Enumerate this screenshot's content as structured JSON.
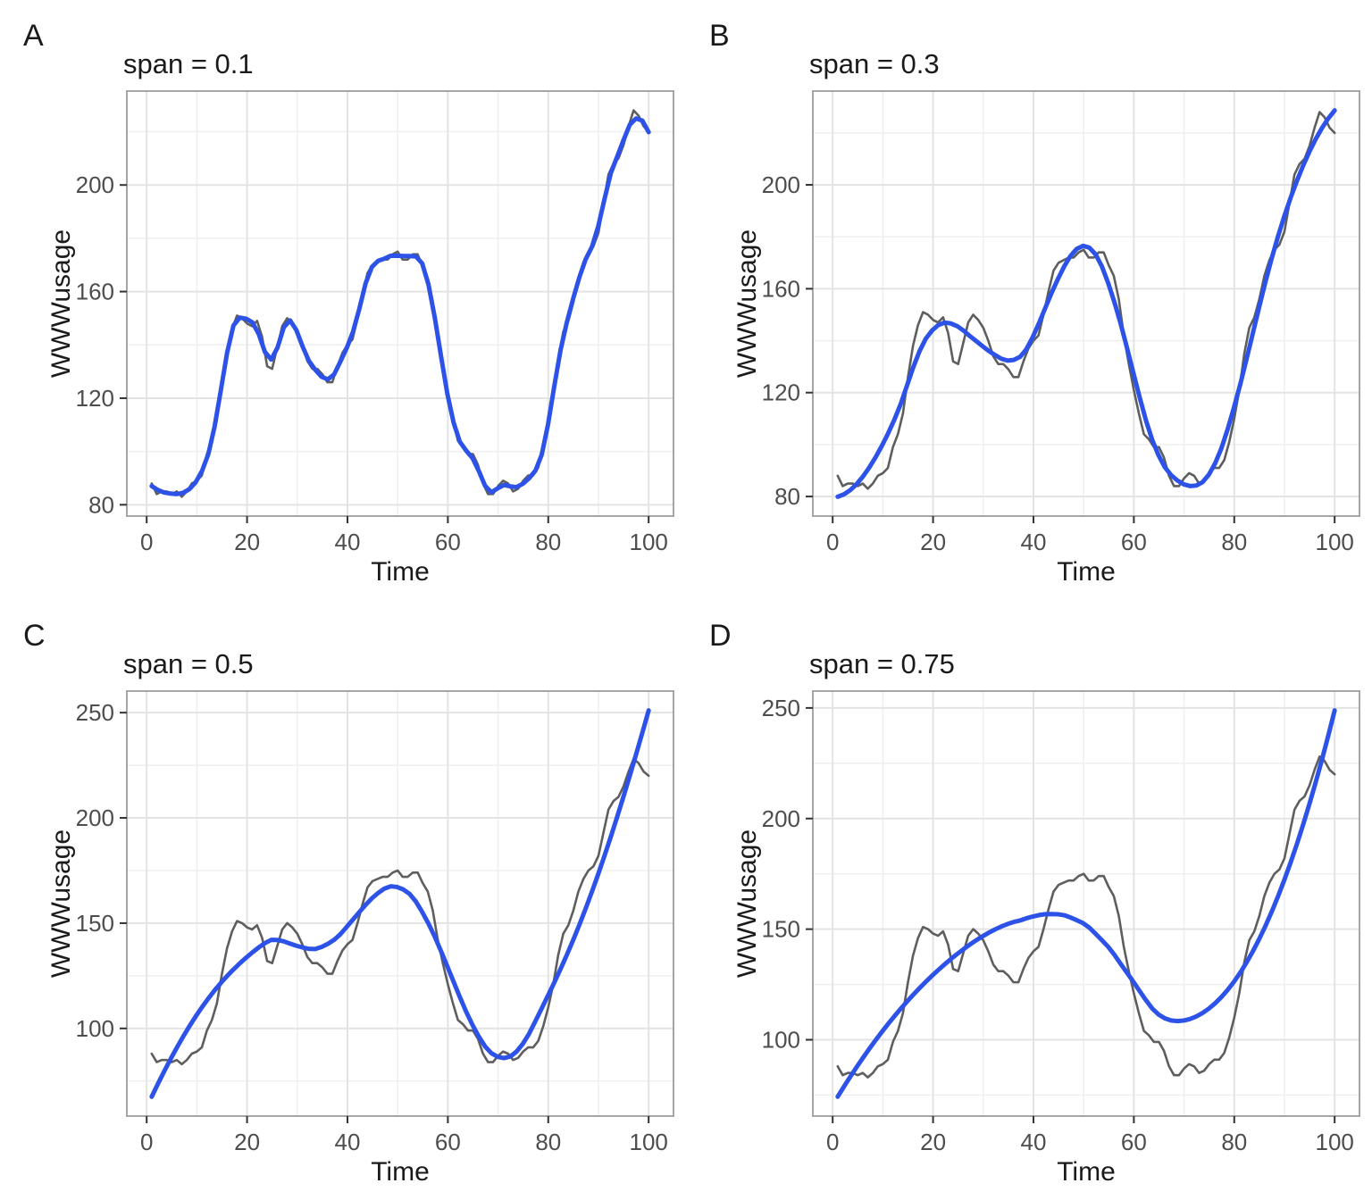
{
  "figure": {
    "background_color": "#FFFFFF"
  },
  "chart_data": {
    "type": "line",
    "description": "2x2 grid of WWWusage time series with loess smoothers of varying span",
    "x": {
      "label": "Time",
      "start": 1,
      "step": 1,
      "count": 100,
      "ticks": [
        0,
        20,
        40,
        60,
        80,
        100
      ]
    },
    "y_label": "WWWusage",
    "series_values": [
      88,
      84,
      85,
      85,
      84,
      85,
      83,
      85,
      88,
      89,
      91,
      99,
      104,
      112,
      126,
      138,
      146,
      151,
      150,
      148,
      147,
      149,
      143,
      132,
      131,
      139,
      147,
      150,
      148,
      145,
      140,
      134,
      131,
      131,
      129,
      126,
      126,
      132,
      137,
      140,
      142,
      150,
      159,
      167,
      170,
      171,
      172,
      172,
      174,
      175,
      172,
      172,
      174,
      174,
      169,
      165,
      156,
      142,
      131,
      121,
      112,
      104,
      102,
      99,
      99,
      95,
      88,
      84,
      84,
      87,
      89,
      88,
      85,
      86,
      89,
      91,
      91,
      94,
      101,
      110,
      121,
      135,
      145,
      149,
      156,
      165,
      171,
      175,
      177,
      182,
      193,
      204,
      208,
      210,
      215,
      222,
      228,
      226,
      222,
      220
    ],
    "data_line": {
      "name": "WWWusage",
      "color": "#5E5E5E",
      "width": 2.6
    },
    "smooth_line": {
      "name": "loess smooth",
      "method": "loess",
      "degree": 2,
      "eval_points": 80,
      "color": "#2D52E8",
      "width": 5
    },
    "grid": {
      "major_color": "#E3E3E3",
      "minor_color": "#EFEFEF",
      "border_color": "#A6A6A6",
      "tick_color": "#333333",
      "tick_label_color": "#4D4D4D",
      "axis_title_color": "#1A1A1A",
      "background": "#FFFFFF"
    },
    "panels": [
      {
        "tag": "A",
        "title": "span = 0.1",
        "span": 0.1,
        "y_ticks": [
          80,
          120,
          160,
          200
        ]
      },
      {
        "tag": "B",
        "title": "span = 0.3",
        "span": 0.3,
        "y_ticks": [
          80,
          120,
          160,
          200
        ]
      },
      {
        "tag": "C",
        "title": "span = 0.5",
        "span": 0.5,
        "y_ticks": [
          100,
          150,
          200,
          250
        ]
      },
      {
        "tag": "D",
        "title": "span = 0.75",
        "span": 0.75,
        "y_ticks": [
          100,
          150,
          200,
          250
        ]
      }
    ]
  }
}
